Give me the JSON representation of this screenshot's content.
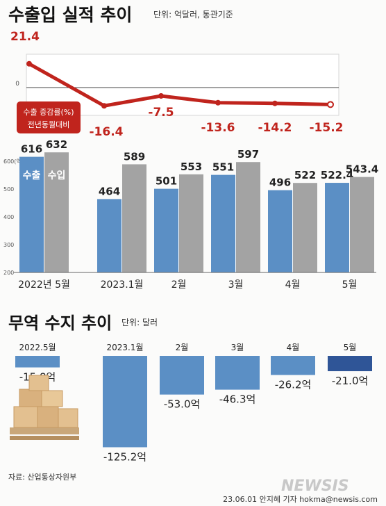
{
  "header": {
    "title": "수출입 실적 추이",
    "unit": "단위: 억달러, 통관기준"
  },
  "chart_data": [
    {
      "type": "line",
      "categories": [
        "2022년 5월",
        "2023.1월",
        "2월",
        "3월",
        "4월",
        "5월"
      ],
      "series": [
        {
          "name": "수출 증감률(%) 전년동월대비",
          "values": [
            21.4,
            -16.4,
            -7.5,
            -13.6,
            -14.2,
            -15.2
          ]
        }
      ],
      "data_labels": [
        "21.4",
        "-16.4",
        "-7.5",
        "-13.6",
        "-14.2",
        "-15.2"
      ],
      "zero_label": "0",
      "legend": [
        "수출 증감률(%)",
        "전년동월대비"
      ],
      "color": "#c0241d"
    },
    {
      "type": "bar",
      "categories": [
        "2022년 5월",
        "2023.1월",
        "2월",
        "3월",
        "4월",
        "5월"
      ],
      "series": [
        {
          "name": "수출",
          "values": [
            616,
            464,
            501,
            551,
            496,
            522.4
          ],
          "color": "#5b8fc5"
        },
        {
          "name": "수입",
          "values": [
            632,
            589,
            553,
            597,
            522,
            543.4
          ],
          "color": "#a3a3a3"
        }
      ],
      "value_labels": {
        "수출": [
          "616",
          "464",
          "501",
          "551",
          "496",
          "522.4"
        ],
        "수입": [
          "632",
          "589",
          "553",
          "597",
          "522",
          "543.4"
        ]
      },
      "ylim": [
        200,
        600
      ],
      "yticks": [
        200,
        300,
        400,
        500,
        600
      ],
      "ytick_labels": [
        "200",
        "300",
        "400",
        "500",
        "600(억)"
      ]
    },
    {
      "title": "무역 수지 추이",
      "unit": "단위: 달러",
      "type": "bar",
      "categories": [
        "2022.5월",
        "2023.1월",
        "2월",
        "3월",
        "4월",
        "5월"
      ],
      "series": [
        {
          "name": "무역수지",
          "values": [
            -15.8,
            -125.2,
            -53.0,
            -46.3,
            -26.2,
            -21.0
          ]
        }
      ],
      "value_labels": [
        "-15.8억",
        "-125.2억",
        "-53.0억",
        "-46.3억",
        "-26.2억",
        "-21.0억"
      ],
      "colors": [
        "#5b8fc5",
        "#5b8fc5",
        "#5b8fc5",
        "#5b8fc5",
        "#5b8fc5",
        "#2f5597"
      ]
    }
  ],
  "footer": {
    "source": "자료: 산업통상자원부",
    "logo": "NEWSIS",
    "credit": "23.06.01  안지혜 기자  hokma@newsis.com"
  }
}
